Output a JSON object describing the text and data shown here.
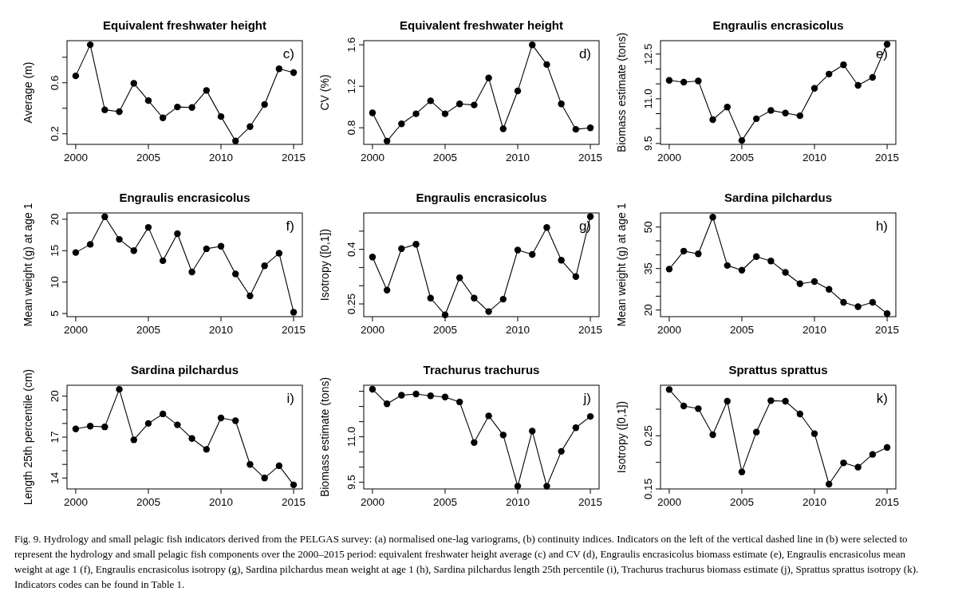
{
  "chart_data": [
    {
      "type": "line",
      "title": "Equivalent freshwater height",
      "ylabel": "Average (m)",
      "annotations": [
        "c)"
      ],
      "marker": "circle",
      "x": [
        2000,
        2001,
        2002,
        2003,
        2004,
        2005,
        2006,
        2007,
        2008,
        2009,
        2010,
        2011,
        2012,
        2013,
        2014,
        2015
      ],
      "xlim": [
        1999.4,
        2015.6
      ],
      "xticks": [
        2000,
        2005,
        2010,
        2015
      ],
      "ylim": [
        0.117,
        0.93
      ],
      "yticks": [
        0.2,
        {
          "value": 0.4,
          "label": null
        },
        0.6,
        {
          "value": 0.8,
          "label": null
        }
      ],
      "series": [
        {
          "color": "#000000",
          "values": [
            0.654,
            0.898,
            0.388,
            0.373,
            0.596,
            0.46,
            0.325,
            0.41,
            0.406,
            0.54,
            0.335,
            0.144,
            0.256,
            0.43,
            0.71,
            0.68
          ]
        }
      ]
    },
    {
      "type": "line",
      "title": "Equivalent freshwater height",
      "ylabel": "CV (%)",
      "annotations": [
        "d)"
      ],
      "marker": "circle",
      "x": [
        2000,
        2001,
        2002,
        2003,
        2004,
        2005,
        2006,
        2007,
        2008,
        2009,
        2010,
        2011,
        2012,
        2013,
        2014,
        2015
      ],
      "xlim": [
        1999.4,
        2015.6
      ],
      "xticks": [
        2000,
        2005,
        2010,
        2015
      ],
      "ylim": [
        0.64,
        1.64
      ],
      "yticks": [
        0.8,
        1.2,
        1.6
      ],
      "series": [
        {
          "color": "#000000",
          "values": [
            0.944,
            0.672,
            0.838,
            0.935,
            1.06,
            0.935,
            1.03,
            1.02,
            1.28,
            0.79,
            1.155,
            1.6,
            1.41,
            1.03,
            0.785,
            0.8
          ]
        }
      ]
    },
    {
      "type": "line",
      "title": "Engraulis encrasicolus",
      "ylabel": "Biomass estimate (tons)",
      "annotations": [
        "e)"
      ],
      "marker": "circle",
      "x": [
        2000,
        2001,
        2002,
        2003,
        2004,
        2005,
        2006,
        2007,
        2008,
        2009,
        2010,
        2011,
        2012,
        2013,
        2014,
        2015
      ],
      "xlim": [
        1999.4,
        2015.6
      ],
      "xticks": [
        2000,
        2005,
        2010,
        2015
      ],
      "ylim": [
        9.47,
        12.95
      ],
      "yticks": [
        9.5,
        {
          "value": 10,
          "label": null
        },
        {
          "value": 10.5,
          "label": null
        },
        {
          "value": 11,
          "label": "11.0"
        },
        {
          "value": 11.5,
          "label": null
        },
        {
          "value": 12,
          "label": null
        },
        12.5
      ],
      "series": [
        {
          "color": "#000000",
          "values": [
            11.62,
            11.56,
            11.6,
            10.3,
            10.72,
            9.6,
            10.33,
            10.61,
            10.52,
            10.43,
            11.35,
            11.83,
            12.14,
            11.45,
            11.72,
            12.83
          ]
        }
      ]
    },
    {
      "type": "line",
      "title": "Engraulis encrasicolus",
      "ylabel": "Mean weight (g) at age 1",
      "annotations": [
        "f)"
      ],
      "marker": "circle",
      "x": [
        2000,
        2001,
        2002,
        2003,
        2004,
        2005,
        2006,
        2007,
        2008,
        2009,
        2010,
        2011,
        2012,
        2013,
        2014,
        2015
      ],
      "xlim": [
        1999.4,
        2015.6
      ],
      "xticks": [
        2000,
        2005,
        2010,
        2015
      ],
      "ylim": [
        4.5,
        21
      ],
      "yticks": [
        5,
        10,
        15,
        20
      ],
      "series": [
        {
          "color": "#000000",
          "values": [
            14.7,
            16.0,
            20.4,
            16.8,
            15.0,
            18.7,
            13.4,
            17.7,
            11.6,
            15.3,
            15.7,
            11.3,
            7.8,
            12.6,
            14.6,
            5.2
          ]
        }
      ]
    },
    {
      "type": "line",
      "title": "Engraulis encrasicolus",
      "ylabel": "Isotropy ([0,1])",
      "annotations": [
        "g)"
      ],
      "marker": "circle",
      "x": [
        2000,
        2001,
        2002,
        2003,
        2004,
        2005,
        2006,
        2007,
        2008,
        2009,
        2010,
        2011,
        2012,
        2013,
        2014,
        2015
      ],
      "xlim": [
        1999.4,
        2015.6
      ],
      "xticks": [
        2000,
        2005,
        2010,
        2015
      ],
      "ylim": [
        0.215,
        0.5
      ],
      "yticks": [
        0.25,
        {
          "value": 0.3,
          "label": null
        },
        {
          "value": 0.35,
          "label": null
        },
        0.4,
        {
          "value": 0.45,
          "label": null
        }
      ],
      "series": [
        {
          "color": "#000000",
          "values": [
            0.379,
            0.288,
            0.402,
            0.414,
            0.266,
            0.22,
            0.322,
            0.266,
            0.229,
            0.263,
            0.398,
            0.386,
            0.46,
            0.37,
            0.325,
            0.49
          ]
        }
      ]
    },
    {
      "type": "line",
      "title": "Sardina pilchardus",
      "ylabel": "Mean weight (g) at age 1",
      "annotations": [
        "h)"
      ],
      "marker": "circle",
      "x": [
        2000,
        2001,
        2002,
        2003,
        2004,
        2005,
        2006,
        2007,
        2008,
        2009,
        2010,
        2011,
        2012,
        2013,
        2014,
        2015
      ],
      "xlim": [
        1999.4,
        2015.6
      ],
      "xticks": [
        2000,
        2005,
        2010,
        2015
      ],
      "ylim": [
        17.6,
        55.1
      ],
      "yticks": [
        20,
        {
          "value": 25,
          "label": null
        },
        {
          "value": 30,
          "label": null
        },
        35,
        {
          "value": 40,
          "label": null
        },
        {
          "value": 45,
          "label": null
        },
        50
      ],
      "series": [
        {
          "color": "#000000",
          "values": [
            34.8,
            41.3,
            40.3,
            53.6,
            36.1,
            34.4,
            39.3,
            37.7,
            33.6,
            29.5,
            30.3,
            27.5,
            22.8,
            21.2,
            22.8,
            18.7
          ]
        }
      ]
    },
    {
      "type": "line",
      "title": "Sardina pilchardus",
      "ylabel": "Length 25th percentile (cm)",
      "annotations": [
        "i)"
      ],
      "marker": "circle",
      "x": [
        2000,
        2001,
        2002,
        2003,
        2004,
        2005,
        2006,
        2007,
        2008,
        2009,
        2010,
        2011,
        2012,
        2013,
        2014,
        2015
      ],
      "xlim": [
        1999.4,
        2015.6
      ],
      "xticks": [
        2000,
        2005,
        2010,
        2015
      ],
      "ylim": [
        13.2,
        20.8
      ],
      "yticks": [
        14,
        {
          "value": 15,
          "label": null
        },
        {
          "value": 16,
          "label": null
        },
        17,
        {
          "value": 18,
          "label": null
        },
        {
          "value": 19,
          "label": null
        },
        20
      ],
      "series": [
        {
          "color": "#000000",
          "values": [
            17.6,
            17.8,
            17.75,
            20.5,
            16.8,
            18.0,
            18.7,
            17.9,
            16.9,
            16.1,
            18.4,
            18.2,
            15.0,
            14.0,
            14.9,
            13.5
          ]
        }
      ]
    },
    {
      "type": "line",
      "title": "Trachurus trachurus",
      "ylabel": "Biomass estimate (tons)",
      "annotations": [
        "j)"
      ],
      "marker": "circle",
      "x": [
        2000,
        2001,
        2002,
        2003,
        2004,
        2005,
        2006,
        2007,
        2008,
        2009,
        2010,
        2011,
        2012,
        2013,
        2014,
        2015
      ],
      "xlim": [
        1999.4,
        2015.6
      ],
      "xticks": [
        2000,
        2005,
        2010,
        2015
      ],
      "ylim": [
        9.28,
        12.7
      ],
      "yticks": [
        9.5,
        {
          "value": 10,
          "label": null
        },
        {
          "value": 10.5,
          "label": null
        },
        {
          "value": 11,
          "label": "11.0"
        },
        {
          "value": 11.5,
          "label": null
        },
        {
          "value": 12,
          "label": null
        },
        {
          "value": 12.5,
          "label": null
        }
      ],
      "series": [
        {
          "color": "#000000",
          "values": [
            12.57,
            12.09,
            12.37,
            12.41,
            12.35,
            12.31,
            12.15,
            10.81,
            11.69,
            11.06,
            9.37,
            11.19,
            9.37,
            10.52,
            11.3,
            11.67
          ]
        }
      ]
    },
    {
      "type": "line",
      "title": "Sprattus sprattus",
      "ylabel": "Isotropy ([0,1])",
      "annotations": [
        "k)"
      ],
      "marker": "circle",
      "x": [
        2000,
        2001,
        2002,
        2003,
        2004,
        2005,
        2006,
        2007,
        2008,
        2009,
        2010,
        2011,
        2012,
        2013,
        2014,
        2015
      ],
      "xlim": [
        1999.4,
        2015.6
      ],
      "xticks": [
        2000,
        2005,
        2010,
        2015
      ],
      "ylim": [
        0.15,
        0.345
      ],
      "yticks": [
        0.15,
        {
          "value": 0.2,
          "label": null
        },
        0.25,
        {
          "value": 0.3,
          "label": null
        }
      ],
      "series": [
        {
          "color": "#000000",
          "values": [
            0.337,
            0.306,
            0.301,
            0.252,
            0.315,
            0.182,
            0.257,
            0.316,
            0.315,
            0.291,
            0.254,
            0.159,
            0.199,
            0.191,
            0.215,
            0.228
          ]
        }
      ]
    },
    {
      "type": "other",
      "annotations": [
        "Fig. 9. Hydrology and small pelagic fish indicators derived from the PELGAS survey: (a) normalised one-lag variograms, (b) continuity indices. Indicators on the left of the vertical dashed line in (b) were selected to represent the hydrology and small pelagic fish components over the 2000–2015 period: equivalent freshwater height average (c) and CV (d), Engraulis encrasicolus biomass estimate (e), Engraulis encrasicolus mean weight at age 1 (f), Engraulis encrasicolus isotropy (g), Sardina pilchardus mean weight at age 1 (h), Sardina pilchardus length 25th percentile (i), Trachurus trachurus biomass estimate (j), Sprattus sprattus isotropy (k). Indicators codes can be found in Table 1."
      ]
    }
  ]
}
